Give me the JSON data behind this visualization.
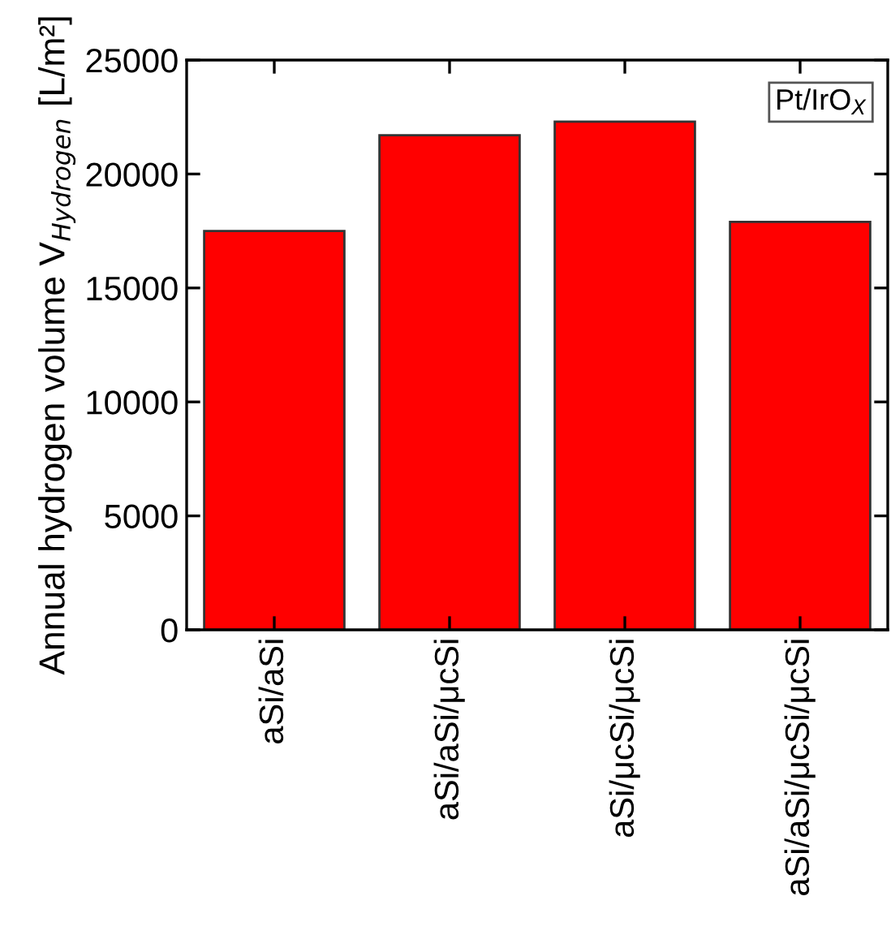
{
  "chart_data": {
    "type": "bar",
    "categories": [
      "aSi/aSi",
      "aSi/aSi/μcSi",
      "aSi/μcSi/μcSi",
      "aSi/aSi/μcSi/μcSi"
    ],
    "values": [
      17500,
      21700,
      22300,
      17900
    ],
    "color": "#ff0000",
    "ylabel": "Annual hydrogen volume V$_{Hydrogen}$ [L/m²]",
    "ylim": [
      0,
      25000
    ],
    "yticks": [
      0,
      5000,
      10000,
      15000,
      20000,
      25000
    ],
    "annotations": [
      "Pt/IrO$_{X}$"
    ],
    "grid": false
  }
}
